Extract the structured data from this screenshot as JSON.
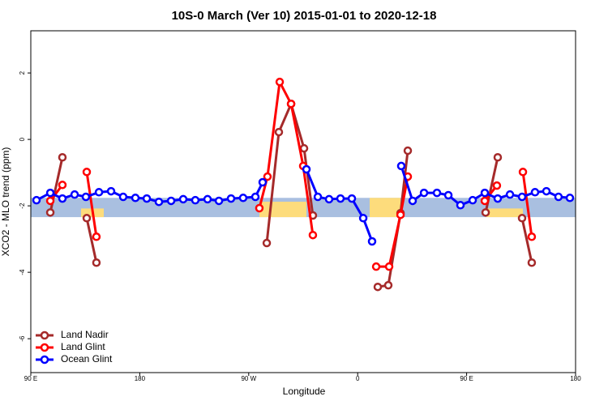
{
  "chart_data": {
    "type": "line",
    "title": "10S-0 March (Ver 10)   2015-01-01 to 2020-12-18",
    "xlabel": "Longitude",
    "ylabel": "XCO2 - MLO trend (ppm)",
    "xlim": [
      90,
      540
    ],
    "ylim": [
      -7.02,
      3.27
    ],
    "xticks": [
      {
        "value": 90,
        "label": "90 E"
      },
      180,
      {
        "value": 270,
        "label": "90 W"
      },
      {
        "value": 360,
        "label": "0"
      },
      {
        "value": 450,
        "label": "90 E"
      },
      {
        "value": 540,
        "label": "180"
      }
    ],
    "yticks": [
      -6,
      -4,
      -2,
      0,
      2
    ],
    "band_ylim": [
      -2.34,
      -1.76
    ],
    "band_color": "#a9bfe0",
    "land_color": "#fddc7c",
    "legend": "bottomleft",
    "series": [
      {
        "name": "Land Nadir",
        "color": "#a52a2a",
        "x": [
          106.1,
          116.1,
          null,
          136.2,
          144.2,
          null,
          284.9,
          294.9,
          305.0,
          315.7,
          323.0,
          null,
          376.6,
          385.3,
          395.4,
          401.4,
          null,
          465.7,
          475.7,
          null,
          495.8,
          503.8
        ],
        "values": [
          -2.2,
          -0.54,
          null,
          -2.37,
          -3.71,
          null,
          -3.12,
          0.22,
          1.07,
          -0.27,
          -2.29,
          null,
          -4.44,
          -4.39,
          -2.22,
          -0.34,
          null,
          -2.2,
          -0.54,
          null,
          -2.37,
          -3.71
        ]
      },
      {
        "name": "Land Glint",
        "color": "#ff0000",
        "x": [
          106.1,
          116.1,
          null,
          136.2,
          144.2,
          null,
          278.8,
          285.5,
          295.6,
          305.0,
          315.0,
          323.0,
          null,
          375.3,
          386.0,
          395.4,
          401.4,
          null,
          465.0,
          475.0,
          null,
          496.5,
          503.8
        ],
        "values": [
          -1.85,
          -1.37,
          null,
          -0.98,
          -2.93,
          null,
          -2.07,
          -1.12,
          1.73,
          1.07,
          -0.8,
          -2.88,
          null,
          -3.83,
          -3.83,
          -2.27,
          -1.12,
          null,
          -1.85,
          -1.39,
          null,
          -0.98,
          -2.93
        ]
      },
      {
        "name": "Ocean Glint",
        "color": "#0000ff",
        "x": [
          94.7,
          106.1,
          116.1,
          126.2,
          135.5,
          146.3,
          156.3,
          166.3,
          176.4,
          185.8,
          195.8,
          205.9,
          215.9,
          225.9,
          236.0,
          245.4,
          255.4,
          265.4,
          275.5,
          281.5,
          null,
          317.7,
          327.1,
          336.4,
          345.8,
          355.2,
          364.6,
          371.9,
          null,
          396.0,
          405.4,
          414.8,
          425.5,
          434.9,
          444.9,
          455.0,
          465.0,
          475.7,
          485.8,
          495.8,
          506.5,
          515.9,
          525.9,
          535.3
        ],
        "values": [
          -1.83,
          -1.61,
          -1.78,
          -1.66,
          -1.73,
          -1.59,
          -1.56,
          -1.73,
          -1.76,
          -1.78,
          -1.88,
          -1.85,
          -1.8,
          -1.83,
          -1.8,
          -1.85,
          -1.78,
          -1.76,
          -1.73,
          -1.29,
          null,
          -0.9,
          -1.73,
          -1.8,
          -1.78,
          -1.78,
          -2.37,
          -3.07,
          null,
          -0.8,
          -1.85,
          -1.61,
          -1.61,
          -1.68,
          -1.98,
          -1.83,
          -1.61,
          -1.78,
          -1.66,
          -1.73,
          -1.59,
          -1.56,
          -1.73,
          -1.76
        ]
      }
    ]
  }
}
